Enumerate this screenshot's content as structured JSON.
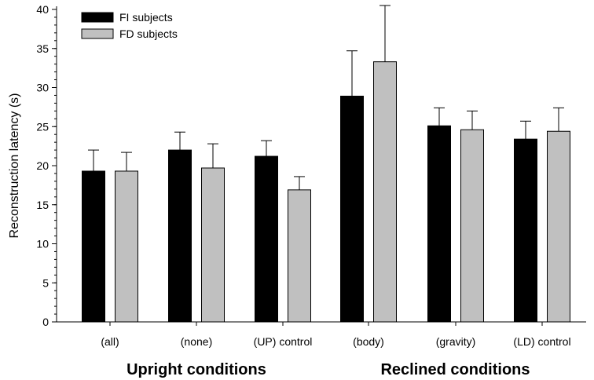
{
  "chart_data": {
    "type": "bar",
    "ylabel": "Reconstruction latency (s)",
    "ylim": [
      0,
      40
    ],
    "y_ticks": [
      "0",
      "5",
      "10",
      "15",
      "20",
      "25",
      "30",
      "35",
      "40"
    ],
    "categories": [
      "(all)",
      "(none)",
      "(UP) control",
      "(body)",
      "(gravity)",
      "(LD) control"
    ],
    "group_labels": [
      {
        "label": "Upright conditions",
        "categories": [
          "(all)",
          "(none)",
          "(UP) control"
        ]
      },
      {
        "label": "Reclined conditions",
        "categories": [
          "(body)",
          "(gravity)",
          "(LD) control"
        ]
      }
    ],
    "series": [
      {
        "name": "FI subjects",
        "color": "#000000",
        "values": [
          19.3,
          22.0,
          21.2,
          28.9,
          25.1,
          23.4
        ],
        "errors": [
          2.7,
          2.3,
          2.0,
          5.8,
          2.3,
          2.3
        ]
      },
      {
        "name": "FD subjects",
        "color": "#c0c0c0",
        "values": [
          19.3,
          19.7,
          16.9,
          33.3,
          24.6,
          24.4
        ],
        "errors": [
          2.4,
          3.1,
          1.7,
          7.2,
          2.4,
          3.0
        ]
      }
    ],
    "grid": false,
    "legend": {
      "placement": "top-left"
    }
  }
}
